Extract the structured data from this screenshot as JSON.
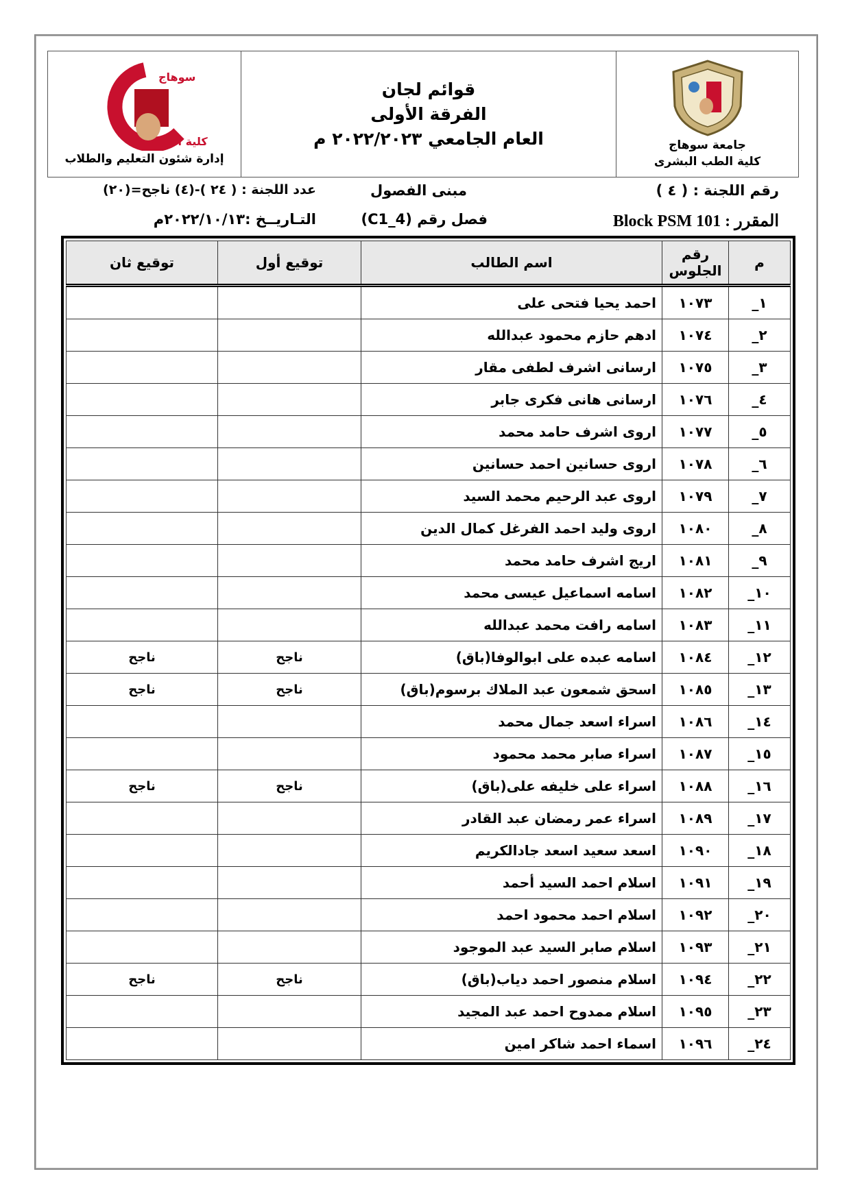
{
  "header": {
    "university_name": "جامعة سوهاج",
    "faculty_name": "كلية الطب البشرى",
    "title_line1": "قوائم لجان",
    "title_line2": "الفرقة الأولى",
    "title_line3": "العام الجامعي ٢٠٢٢/٢٠٢٣ م",
    "department": "إدارة شئون التعليم والطلاب",
    "logo_text_left": "جامعة سوهاج كلية الطب"
  },
  "info": {
    "committee_number": "رقم اللجنة : ( ٤ )",
    "building": "مبنى الفصول",
    "committee_count": "عدد اللجنة : ( ٢٤ )-(٤) ناجح=(٢٠)",
    "course": "المقرر : Block PSM 101",
    "classroom": "فصل رقم (C1_4)",
    "date": "التـاريــخ :٢٠٢٢/١٠/١٣م"
  },
  "table": {
    "headers": [
      "م",
      "رقم الجلوس",
      "اسم الطالب",
      "توقيع أول",
      "توقيع ثان"
    ],
    "rows": [
      {
        "n": "١_",
        "seat": "١٠٧٣",
        "name": "احمد يحيا فتحى على",
        "sig1": "",
        "sig2": ""
      },
      {
        "n": "٢_",
        "seat": "١٠٧٤",
        "name": "ادهم حازم محمود عبدالله",
        "sig1": "",
        "sig2": ""
      },
      {
        "n": "٣_",
        "seat": "١٠٧٥",
        "name": "ارسانى اشرف لطفى مقار",
        "sig1": "",
        "sig2": ""
      },
      {
        "n": "٤_",
        "seat": "١٠٧٦",
        "name": "ارسانى هانى فكرى جابر",
        "sig1": "",
        "sig2": ""
      },
      {
        "n": "٥_",
        "seat": "١٠٧٧",
        "name": "اروى اشرف حامد محمد",
        "sig1": "",
        "sig2": ""
      },
      {
        "n": "٦_",
        "seat": "١٠٧٨",
        "name": "اروى حسانين احمد حسانين",
        "sig1": "",
        "sig2": ""
      },
      {
        "n": "٧_",
        "seat": "١٠٧٩",
        "name": "اروى عبد الرحيم محمد السيد",
        "sig1": "",
        "sig2": ""
      },
      {
        "n": "٨_",
        "seat": "١٠٨٠",
        "name": "اروى وليد احمد الفرغل كمال الدين",
        "sig1": "",
        "sig2": ""
      },
      {
        "n": "٩_",
        "seat": "١٠٨١",
        "name": "اريج اشرف حامد محمد",
        "sig1": "",
        "sig2": ""
      },
      {
        "n": "١٠_",
        "seat": "١٠٨٢",
        "name": "اسامه اسماعيل عيسى محمد",
        "sig1": "",
        "sig2": ""
      },
      {
        "n": "١١_",
        "seat": "١٠٨٣",
        "name": "اسامه رافت محمد عبدالله",
        "sig1": "",
        "sig2": ""
      },
      {
        "n": "١٢_",
        "seat": "١٠٨٤",
        "name": "اسامه عبده على ابوالوفا(باق)",
        "sig1": "ناجح",
        "sig2": "ناجح"
      },
      {
        "n": "١٣_",
        "seat": "١٠٨٥",
        "name": "اسحق شمعون عبد الملاك برسوم(باق)",
        "sig1": "ناجح",
        "sig2": "ناجح"
      },
      {
        "n": "١٤_",
        "seat": "١٠٨٦",
        "name": "اسراء اسعد جمال محمد",
        "sig1": "",
        "sig2": ""
      },
      {
        "n": "١٥_",
        "seat": "١٠٨٧",
        "name": "اسراء صابر محمد محمود",
        "sig1": "",
        "sig2": ""
      },
      {
        "n": "١٦_",
        "seat": "١٠٨٨",
        "name": "اسراء على خليفه على(باق)",
        "sig1": "ناجح",
        "sig2": "ناجح"
      },
      {
        "n": "١٧_",
        "seat": "١٠٨٩",
        "name": "اسراء عمر رمضان عبد القادر",
        "sig1": "",
        "sig2": ""
      },
      {
        "n": "١٨_",
        "seat": "١٠٩٠",
        "name": "اسعد سعيد اسعد جادالكريم",
        "sig1": "",
        "sig2": ""
      },
      {
        "n": "١٩_",
        "seat": "١٠٩١",
        "name": "اسلام احمد السيد أحمد",
        "sig1": "",
        "sig2": ""
      },
      {
        "n": "٢٠_",
        "seat": "١٠٩٢",
        "name": "اسلام احمد محمود احمد",
        "sig1": "",
        "sig2": ""
      },
      {
        "n": "٢١_",
        "seat": "١٠٩٣",
        "name": "اسلام صابر السيد عبد الموجود",
        "sig1": "",
        "sig2": ""
      },
      {
        "n": "٢٢_",
        "seat": "١٠٩٤",
        "name": "اسلام منصور احمد دياب(باق)",
        "sig1": "ناجح",
        "sig2": "ناجح"
      },
      {
        "n": "٢٣_",
        "seat": "١٠٩٥",
        "name": "اسلام ممدوح احمد عبد المجيد",
        "sig1": "",
        "sig2": ""
      },
      {
        "n": "٢٤_",
        "seat": "١٠٩٦",
        "name": "اسماء احمد شاكر امين",
        "sig1": "",
        "sig2": ""
      }
    ]
  }
}
